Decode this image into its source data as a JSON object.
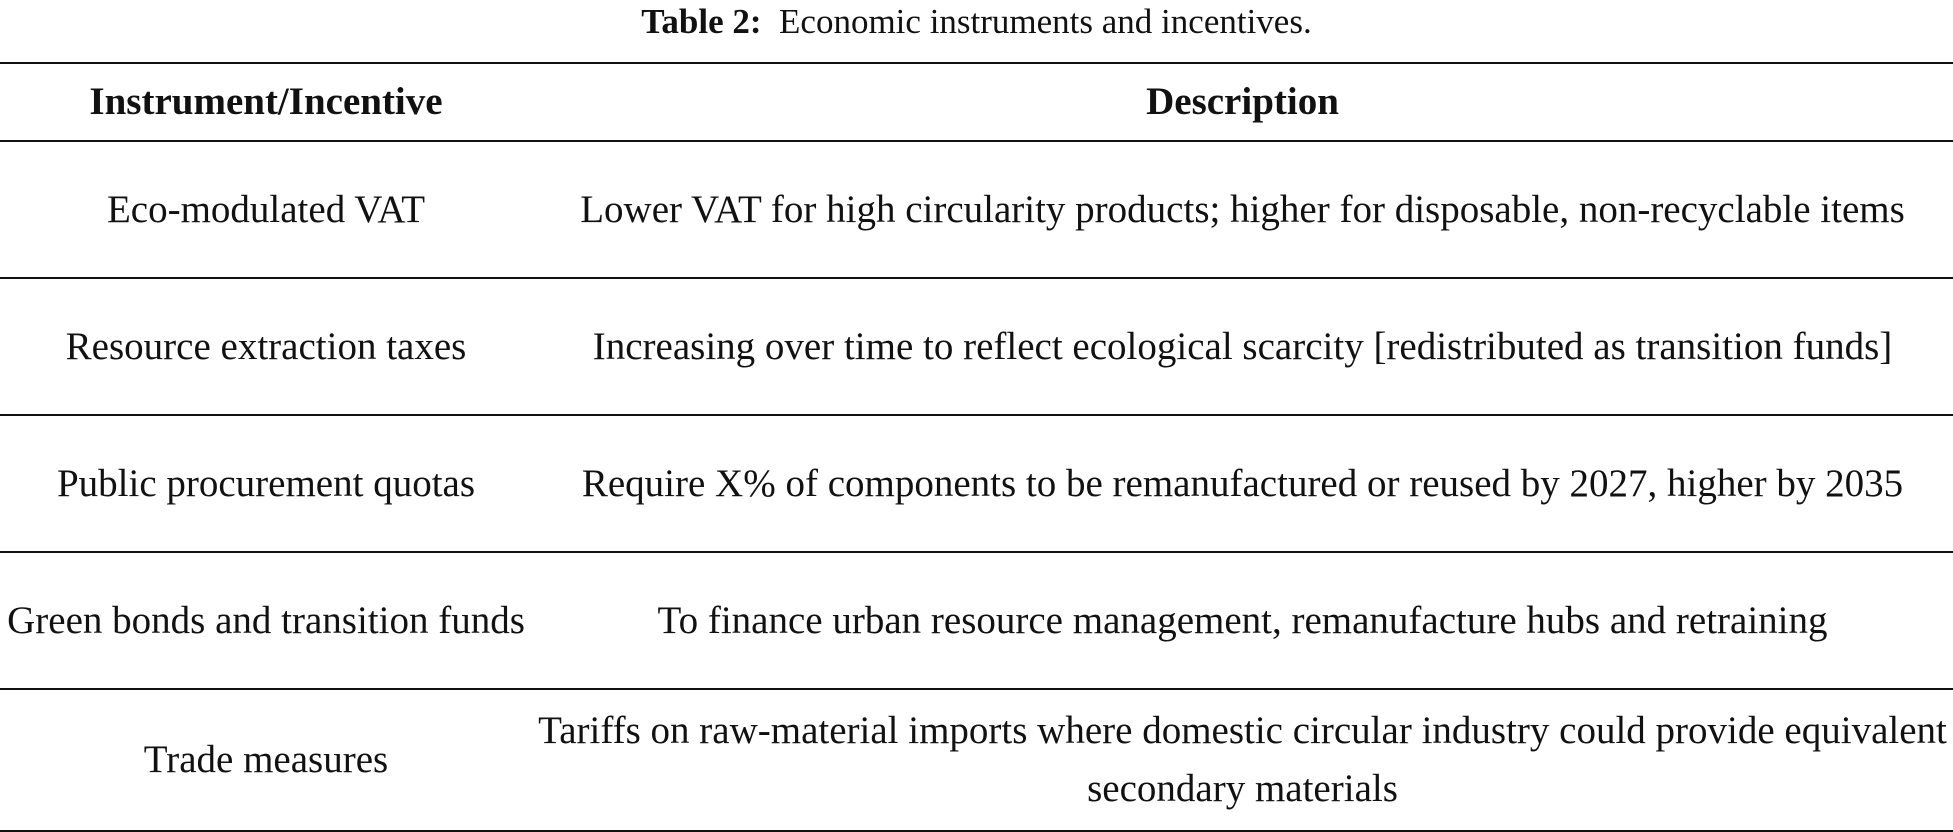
{
  "caption": {
    "label": "Table 2:",
    "text": "Economic instruments and incentives."
  },
  "table": {
    "headers": [
      "Instrument/Incentive",
      "Description"
    ],
    "rows": [
      [
        "Eco-modulated VAT",
        "Lower VAT for high circularity products; higher for disposable, non-recyclable items"
      ],
      [
        "Resource extraction taxes",
        "Increasing over time to reflect ecological scarcity [redistributed as transition funds]"
      ],
      [
        "Public procurement quotas",
        "Require X% of components to be remanufactured or reused by 2027, higher by 2035"
      ],
      [
        "Green bonds and transition funds",
        "To finance urban resource management, remanufacture hubs and retraining"
      ],
      [
        "Trade measures",
        "Tariffs on raw-material imports where domestic circular industry could provide equivalent secondary materials"
      ]
    ]
  }
}
